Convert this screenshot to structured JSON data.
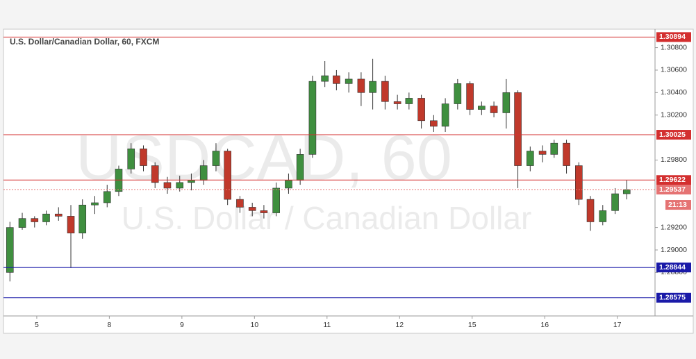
{
  "chart_data": {
    "type": "candlestick",
    "title": "U.S. Dollar/Canadian Dollar, 60, FXCM",
    "watermark": {
      "symbol": "USDCAD, 60",
      "description": "U.S. Dollar / Canadian Dollar"
    },
    "up_color": "#3f8f3f",
    "down_color": "#c0392b",
    "x": [
      -0.37,
      -0.2,
      -0.03,
      0.13,
      0.3,
      0.47,
      0.63,
      0.8,
      0.97,
      1.13,
      1.3,
      1.47,
      1.63,
      1.8,
      1.97,
      2.13,
      2.3,
      2.47,
      2.63,
      2.8,
      2.97,
      3.13,
      3.3,
      3.47,
      3.63,
      3.8,
      3.97,
      4.13,
      4.3,
      4.47,
      4.63,
      4.8,
      4.97,
      5.13,
      5.3,
      5.47,
      5.63,
      5.8,
      5.97,
      6.13,
      6.3,
      6.47,
      6.63,
      6.8,
      6.97,
      7.13,
      7.3,
      7.47,
      7.63,
      7.8,
      7.97,
      8.13
    ],
    "open": [
      1.288,
      1.292,
      1.2928,
      1.2925,
      1.2932,
      1.293,
      1.2915,
      1.294,
      1.2942,
      1.2952,
      1.2972,
      1.299,
      1.2975,
      1.296,
      1.2955,
      1.296,
      1.2962,
      1.2975,
      1.2988,
      1.2945,
      1.2938,
      1.2935,
      1.2933,
      1.2955,
      1.2962,
      1.2985,
      1.305,
      1.3055,
      1.3048,
      1.3052,
      1.304,
      1.305,
      1.3032,
      1.303,
      1.3035,
      1.3015,
      1.301,
      1.303,
      1.3048,
      1.3025,
      1.3028,
      1.3022,
      1.304,
      1.2975,
      1.2988,
      1.2985,
      1.2995,
      1.2975,
      1.2945,
      1.2925,
      1.2935,
      1.295
    ],
    "high": [
      1.2925,
      1.2933,
      1.293,
      1.2935,
      1.2938,
      1.294,
      1.2945,
      1.2948,
      1.2958,
      1.2975,
      1.2995,
      1.2993,
      1.2978,
      1.2965,
      1.2966,
      1.2968,
      1.298,
      1.2995,
      1.299,
      1.2948,
      1.2942,
      1.294,
      1.296,
      1.2968,
      1.299,
      1.3055,
      1.3068,
      1.306,
      1.3058,
      1.3058,
      1.307,
      1.3055,
      1.3038,
      1.304,
      1.3038,
      1.302,
      1.3035,
      1.3052,
      1.305,
      1.3032,
      1.3032,
      1.3052,
      1.3042,
      1.2992,
      1.2993,
      1.2998,
      1.2998,
      1.2978,
      1.2948,
      1.294,
      1.2955,
      1.2962
    ],
    "low": [
      1.2872,
      1.2918,
      1.292,
      1.2922,
      1.2926,
      1.2884,
      1.291,
      1.2932,
      1.2938,
      1.2948,
      1.2968,
      1.297,
      1.2955,
      1.295,
      1.2952,
      1.2953,
      1.2958,
      1.297,
      1.294,
      1.2933,
      1.293,
      1.2928,
      1.293,
      1.295,
      1.2958,
      1.2982,
      1.3045,
      1.3042,
      1.304,
      1.3028,
      1.3025,
      1.3025,
      1.3025,
      1.3025,
      1.3008,
      1.3005,
      1.3005,
      1.3025,
      1.302,
      1.302,
      1.3018,
      1.3008,
      1.2955,
      1.297,
      1.2978,
      1.2982,
      1.2968,
      1.294,
      1.2917,
      1.2922,
      1.2932,
      1.2945
    ],
    "close": [
      1.292,
      1.2928,
      1.2925,
      1.2932,
      1.293,
      1.2915,
      1.294,
      1.2942,
      1.2952,
      1.2972,
      1.299,
      1.2975,
      1.296,
      1.2955,
      1.296,
      1.2962,
      1.2975,
      1.2988,
      1.2945,
      1.2938,
      1.2935,
      1.2933,
      1.2955,
      1.2962,
      1.2985,
      1.305,
      1.3055,
      1.3048,
      1.3052,
      1.304,
      1.305,
      1.3032,
      1.303,
      1.3035,
      1.3015,
      1.301,
      1.303,
      1.3048,
      1.3025,
      1.3028,
      1.3022,
      1.304,
      1.2975,
      1.2988,
      1.2985,
      1.2995,
      1.2975,
      1.2945,
      1.2925,
      1.2935,
      1.295,
      1.29537
    ],
    "xlim": [
      -0.43,
      8.52
    ],
    "xticks": [
      {
        "value": 0,
        "label": "5"
      },
      {
        "value": 1,
        "label": "8"
      },
      {
        "value": 2,
        "label": "9"
      },
      {
        "value": 3,
        "label": "10"
      },
      {
        "value": 4,
        "label": "11"
      },
      {
        "value": 5,
        "label": "12"
      },
      {
        "value": 6,
        "label": "15"
      },
      {
        "value": 7,
        "label": "16"
      },
      {
        "value": 8,
        "label": "17"
      }
    ],
    "ylim": [
      1.28413,
      1.30958
    ],
    "yticks": [
      {
        "value": 1.288,
        "label": "1.28800"
      },
      {
        "value": 1.29,
        "label": "1.29000"
      },
      {
        "value": 1.292,
        "label": "1.29200"
      },
      {
        "value": 1.298,
        "label": "1.29800"
      },
      {
        "value": 1.302,
        "label": "1.30200"
      },
      {
        "value": 1.304,
        "label": "1.30400"
      },
      {
        "value": 1.306,
        "label": "1.30600"
      },
      {
        "value": 1.308,
        "label": "1.30800"
      }
    ],
    "levels": [
      {
        "value": 1.30894,
        "color": "#d32f2f",
        "dashed": false
      },
      {
        "value": 1.30025,
        "color": "#d32f2f",
        "dashed": false
      },
      {
        "value": 1.29622,
        "color": "#d32f2f",
        "dashed": false
      },
      {
        "value": 1.29537,
        "color": "#e57373",
        "dashed": true
      },
      {
        "value": 1.28844,
        "color": "#1a1aa8",
        "dashed": false
      },
      {
        "value": 1.28575,
        "color": "#1a1aa8",
        "dashed": false
      }
    ],
    "countdown": "21:13"
  }
}
